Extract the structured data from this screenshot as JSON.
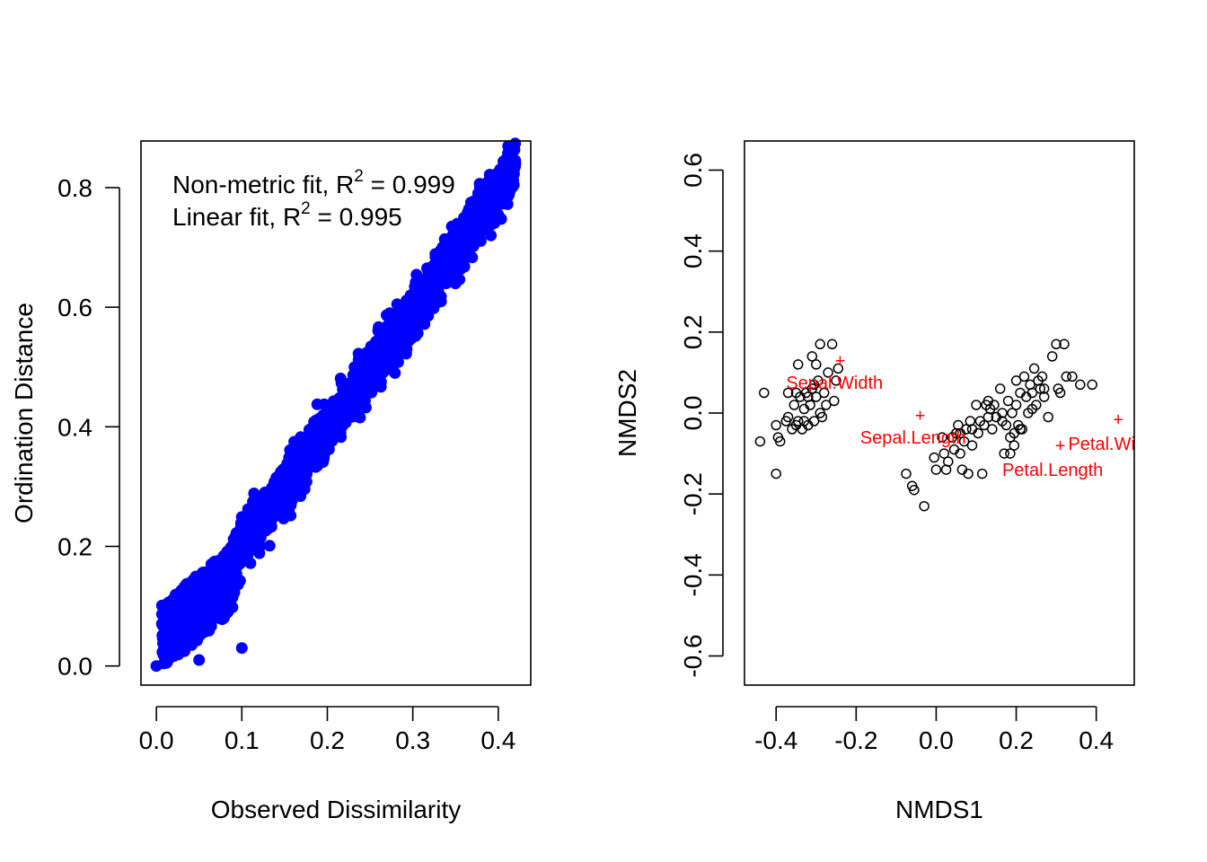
{
  "chart_data": [
    {
      "type": "scatter",
      "title": "",
      "xlabel": "Observed Dissimilarity",
      "ylabel": "Ordination Distance",
      "xlim": [
        -0.018,
        0.438
      ],
      "ylim": [
        -0.032,
        0.878
      ],
      "x_ticks": [
        "0.0",
        "0.1",
        "0.2",
        "0.3",
        "0.4"
      ],
      "x_tick_values": [
        0,
        0.1,
        0.2,
        0.3,
        0.4
      ],
      "y_ticks": [
        "0.0",
        "0.2",
        "0.4",
        "0.6",
        "0.8"
      ],
      "y_tick_values": [
        0,
        0.2,
        0.4,
        0.6,
        0.8
      ],
      "point_color": "#0000ff",
      "annotations": [
        {
          "prefix": "Non-metric fit, R",
          "sup": "2",
          "suffix": " = 0.999"
        },
        {
          "prefix": "Linear fit, R",
          "sup": "2",
          "suffix": " = 0.995"
        }
      ],
      "series": [
        {
          "values": [
            [
              0.0,
              0.0
            ],
            [
              0.42,
              0.84
            ],
            [
              0.41,
              0.82
            ],
            [
              0.1,
              0.03
            ],
            [
              0.4,
              0.8
            ],
            [
              0.38,
              0.77
            ],
            [
              0.35,
              0.71
            ],
            [
              0.32,
              0.66
            ],
            [
              0.3,
              0.62
            ],
            [
              0.28,
              0.57
            ],
            [
              0.26,
              0.52
            ],
            [
              0.24,
              0.5
            ],
            [
              0.22,
              0.45
            ],
            [
              0.2,
              0.4
            ],
            [
              0.18,
              0.35
            ],
            [
              0.16,
              0.31
            ],
            [
              0.14,
              0.27
            ],
            [
              0.12,
              0.23
            ],
            [
              0.1,
              0.2
            ],
            [
              0.08,
              0.16
            ],
            [
              0.06,
              0.13
            ],
            [
              0.04,
              0.11
            ],
            [
              0.02,
              0.04
            ],
            [
              0.05,
              0.01
            ]
          ]
        }
      ]
    },
    {
      "type": "scatter",
      "title": "",
      "xlabel": "NMDS1",
      "ylabel": "NMDS2",
      "xlim": [
        -0.479,
        0.495
      ],
      "ylim": [
        -0.672,
        0.672
      ],
      "x_ticks": [
        "-0.4",
        "-0.2",
        "0.0",
        "0.2",
        "0.4"
      ],
      "x_tick_values": [
        -0.4,
        -0.2,
        0,
        0.2,
        0.4
      ],
      "y_ticks": [
        "-0.6",
        "-0.4",
        "-0.2",
        "0.0",
        "0.2",
        "0.4",
        "0.6"
      ],
      "y_tick_values": [
        -0.6,
        -0.4,
        -0.2,
        0,
        0.2,
        0.4,
        0.6
      ],
      "point_color": "#000000",
      "species_color": "#ff0000",
      "species": [
        {
          "name": "Sepal.Width",
          "x": -0.24,
          "y": 0.13
        },
        {
          "name": "Sepal.Length",
          "x": -0.04,
          "y": -0.005
        },
        {
          "name": "Petal.Length",
          "x": 0.31,
          "y": -0.08
        },
        {
          "name": "Petal.Width",
          "x": 0.455,
          "y": -0.015
        }
      ],
      "sites": [
        [
          -0.44,
          -0.07
        ],
        [
          -0.43,
          0.05
        ],
        [
          -0.4,
          -0.15
        ],
        [
          -0.4,
          -0.03
        ],
        [
          -0.395,
          -0.06
        ],
        [
          -0.39,
          -0.07
        ],
        [
          -0.375,
          -0.02
        ],
        [
          -0.37,
          0.05
        ],
        [
          -0.37,
          -0.01
        ],
        [
          -0.36,
          -0.04
        ],
        [
          -0.355,
          0.02
        ],
        [
          -0.35,
          -0.03
        ],
        [
          -0.35,
          0.05
        ],
        [
          -0.345,
          0.12
        ],
        [
          -0.345,
          -0.02
        ],
        [
          -0.34,
          0.04
        ],
        [
          -0.335,
          -0.04
        ],
        [
          -0.33,
          0.01
        ],
        [
          -0.33,
          -0.02
        ],
        [
          -0.325,
          0.05
        ],
        [
          -0.32,
          0.04
        ],
        [
          -0.32,
          -0.03
        ],
        [
          -0.315,
          0.02
        ],
        [
          -0.31,
          0.14
        ],
        [
          -0.31,
          0.06
        ],
        [
          -0.305,
          -0.02
        ],
        [
          -0.3,
          0.04
        ],
        [
          -0.3,
          0.12
        ],
        [
          -0.295,
          0.08
        ],
        [
          -0.29,
          0.17
        ],
        [
          -0.29,
          0.0
        ],
        [
          -0.285,
          -0.01
        ],
        [
          -0.28,
          0.05
        ],
        [
          -0.275,
          0.02
        ],
        [
          -0.27,
          0.1
        ],
        [
          -0.26,
          0.17
        ],
        [
          -0.255,
          0.03
        ],
        [
          -0.25,
          0.08
        ],
        [
          -0.245,
          0.11
        ],
        [
          -0.305,
          0.07
        ],
        [
          -0.075,
          -0.15
        ],
        [
          -0.06,
          -0.18
        ],
        [
          -0.055,
          -0.19
        ],
        [
          -0.03,
          -0.23
        ],
        [
          -0.005,
          -0.11
        ],
        [
          0.0,
          -0.14
        ],
        [
          0.015,
          -0.06
        ],
        [
          0.02,
          -0.1
        ],
        [
          0.025,
          -0.14
        ],
        [
          0.03,
          -0.12
        ],
        [
          0.04,
          -0.06
        ],
        [
          0.045,
          -0.09
        ],
        [
          0.05,
          -0.05
        ],
        [
          0.055,
          -0.03
        ],
        [
          0.06,
          -0.1
        ],
        [
          0.065,
          -0.14
        ],
        [
          0.07,
          -0.07
        ],
        [
          0.075,
          -0.04
        ],
        [
          0.08,
          -0.15
        ],
        [
          0.085,
          -0.02
        ],
        [
          0.09,
          -0.04
        ],
        [
          0.1,
          0.02
        ],
        [
          0.105,
          -0.05
        ],
        [
          0.11,
          -0.02
        ],
        [
          0.115,
          -0.15
        ],
        [
          0.12,
          -0.03
        ],
        [
          0.125,
          0.02
        ],
        [
          0.13,
          -0.01
        ],
        [
          0.135,
          0.01
        ],
        [
          0.14,
          -0.04
        ],
        [
          0.145,
          0.02
        ],
        [
          0.15,
          -0.01
        ],
        [
          0.16,
          0.06
        ],
        [
          0.165,
          0.0
        ],
        [
          0.17,
          -0.1
        ],
        [
          0.175,
          -0.03
        ],
        [
          0.18,
          0.03
        ],
        [
          0.185,
          -0.06
        ],
        [
          0.19,
          0.0
        ],
        [
          0.195,
          -0.05
        ],
        [
          0.2,
          0.08
        ],
        [
          0.205,
          -0.03
        ],
        [
          0.21,
          0.05
        ],
        [
          0.215,
          -0.04
        ],
        [
          0.22,
          0.09
        ],
        [
          0.225,
          0.04
        ],
        [
          0.23,
          0.0
        ],
        [
          0.235,
          0.07
        ],
        [
          0.24,
          0.05
        ],
        [
          0.245,
          0.11
        ],
        [
          0.25,
          0.02
        ],
        [
          0.255,
          0.08
        ],
        [
          0.26,
          0.06
        ],
        [
          0.265,
          0.09
        ],
        [
          0.27,
          0.04
        ],
        [
          0.28,
          -0.01
        ],
        [
          0.29,
          0.14
        ],
        [
          0.3,
          0.17
        ],
        [
          0.305,
          0.06
        ],
        [
          0.31,
          0.05
        ],
        [
          0.32,
          0.17
        ],
        [
          0.325,
          0.09
        ],
        [
          0.34,
          0.09
        ],
        [
          0.36,
          0.07
        ],
        [
          0.39,
          0.07
        ],
        [
          0.165,
          -0.02
        ],
        [
          0.195,
          -0.08
        ],
        [
          0.2,
          0.02
        ],
        [
          0.13,
          0.03
        ],
        [
          0.09,
          -0.08
        ],
        [
          0.06,
          -0.05
        ],
        [
          0.185,
          -0.1
        ],
        [
          0.21,
          -0.04
        ],
        [
          0.24,
          0.01
        ],
        [
          0.27,
          0.06
        ]
      ]
    }
  ]
}
